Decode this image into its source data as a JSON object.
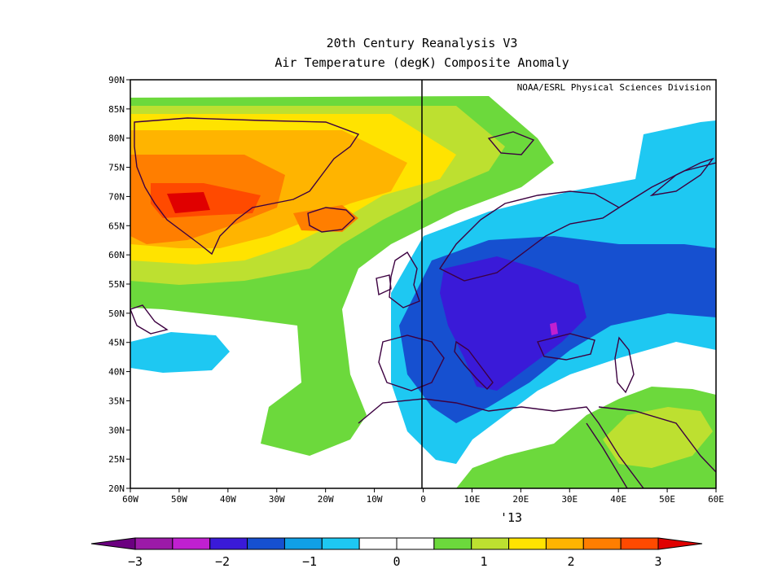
{
  "title": "20th Century Reanalysis V3",
  "subtitle": "Air Temperature (degK) Composite Anomaly",
  "credit": "NOAA/ESRL Physical Sciences Division",
  "period_label": "'13",
  "lat_labels": [
    "20N",
    "25N",
    "30N",
    "35N",
    "40N",
    "45N",
    "50N",
    "55N",
    "60N",
    "65N",
    "70N",
    "75N",
    "80N",
    "85N",
    "90N"
  ],
  "lon_labels": [
    "60W",
    "50W",
    "40W",
    "30W",
    "20W",
    "10W",
    "0",
    "10E",
    "20E",
    "30E",
    "40E",
    "50E",
    "60E"
  ],
  "colorbar": {
    "colors": [
      "#6b0080",
      "#9c1aa8",
      "#c020d0",
      "#3a1ad8",
      "#1650d0",
      "#10a0e6",
      "#1ec8f2",
      "#ffffff",
      "#ffffff",
      "#6cd93c",
      "#bde030",
      "#ffe300",
      "#ffb400",
      "#ff7e00",
      "#ff4a00",
      "#e00000"
    ],
    "labels": [
      "−3",
      "−2",
      "−1",
      "0",
      "1",
      "2",
      "3"
    ]
  }
}
